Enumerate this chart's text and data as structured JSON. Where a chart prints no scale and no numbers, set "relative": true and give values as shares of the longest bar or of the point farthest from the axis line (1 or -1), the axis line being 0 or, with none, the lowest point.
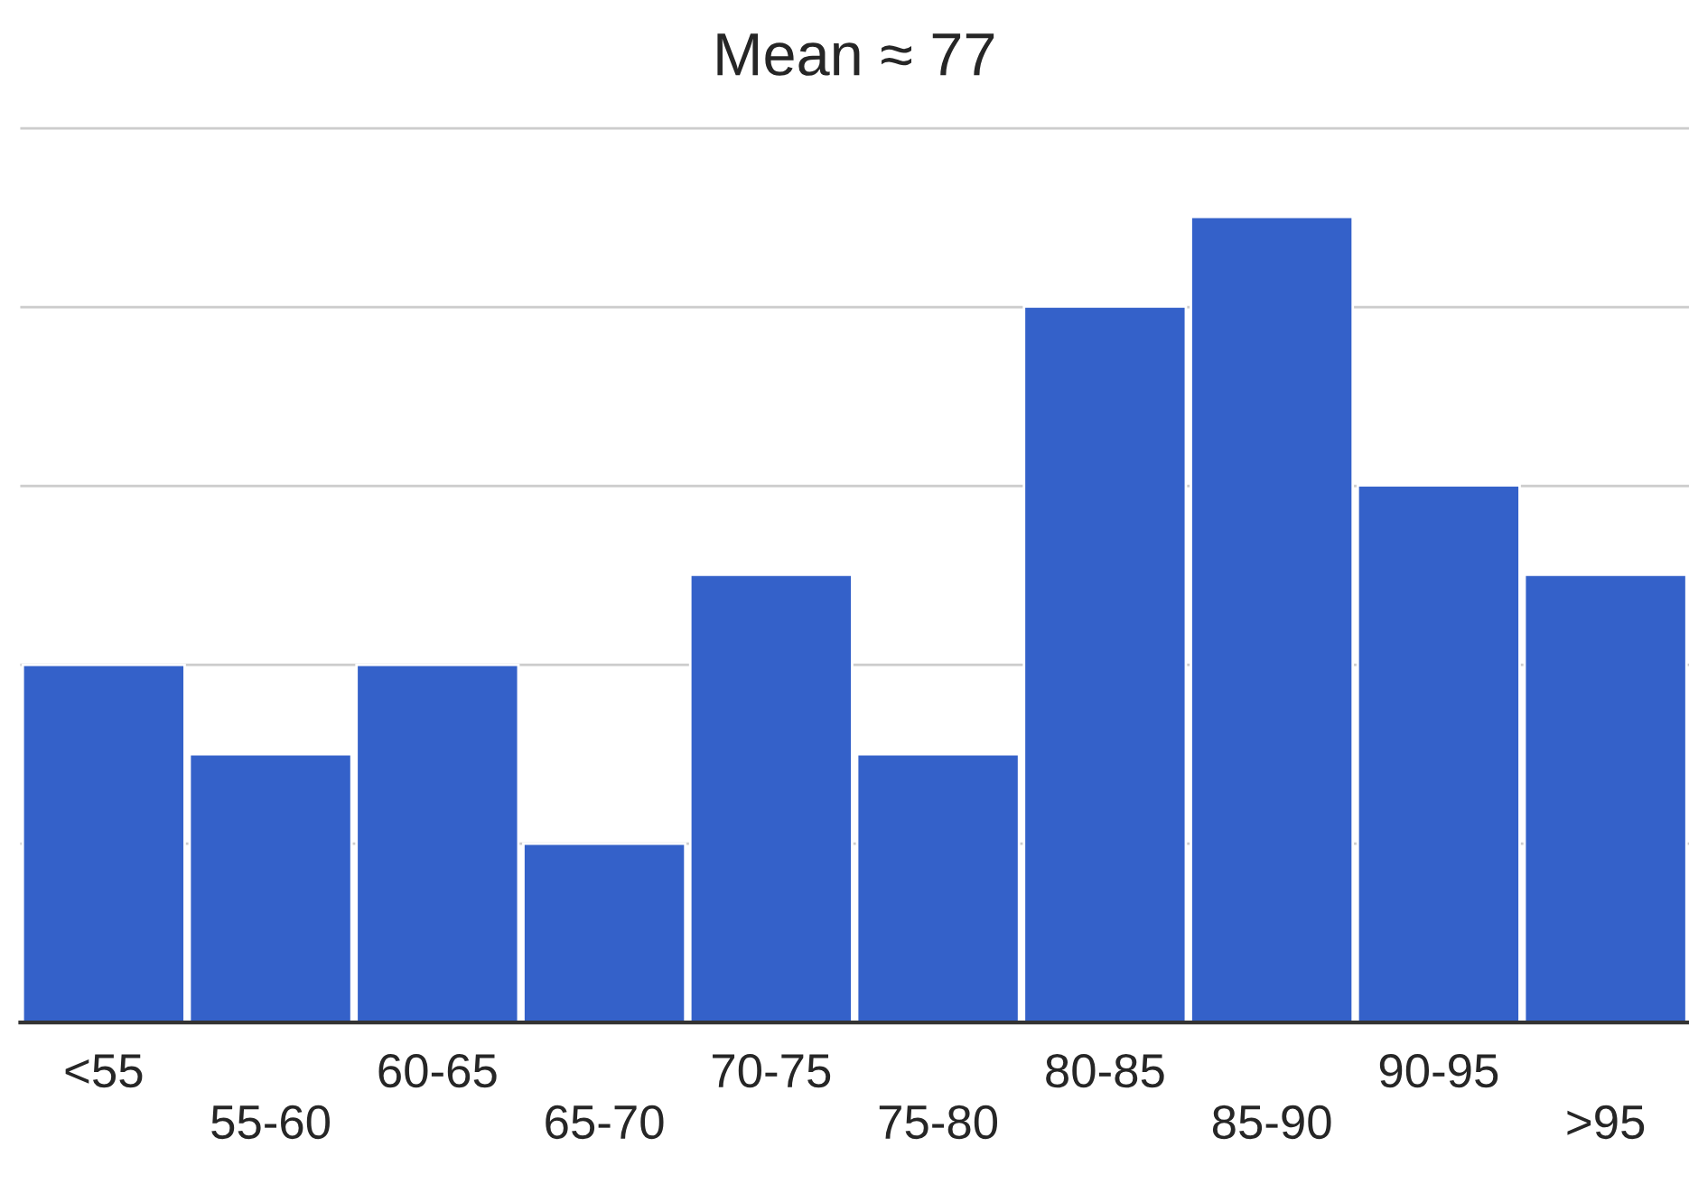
{
  "chart_data": {
    "type": "bar",
    "title": "Mean ≈ 77",
    "relative": true,
    "grid": "y",
    "categories": [
      "<55",
      "55-60",
      "60-65",
      "65-70",
      "70-75",
      "75-80",
      "80-85",
      "85-90",
      "90-95",
      ">95"
    ],
    "values": [
      0.444,
      0.333,
      0.444,
      0.222,
      0.556,
      0.333,
      0.889,
      1,
      0.667,
      0.556
    ],
    "color": "#3461c9"
  }
}
